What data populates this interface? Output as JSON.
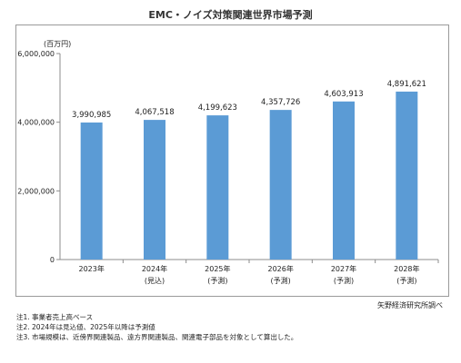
{
  "chart_data": {
    "type": "bar",
    "title": "EMC・ノイズ対策関連世界市場予測",
    "unit_label": "(百万円)",
    "categories": [
      "2023年",
      "2024年",
      "2025年",
      "2026年",
      "2027年",
      "2028年"
    ],
    "sublabels": [
      "",
      "(見込)",
      "(予測)",
      "(予測)",
      "(予測)",
      "(予測)"
    ],
    "values": [
      3990985,
      4067518,
      4199623,
      4357726,
      4603913,
      4891621
    ],
    "value_labels": [
      "3,990,985",
      "4,067,518",
      "4,199,623",
      "4,357,726",
      "4,603,913",
      "4,891,621"
    ],
    "y_ticks": [
      0,
      2000000,
      4000000,
      6000000
    ],
    "y_tick_labels": [
      "0",
      "2,000,000",
      "4,000,000",
      "6,000,000"
    ],
    "ylim": [
      0,
      6000000
    ],
    "bar_color": "#5b9bd5",
    "grid": false,
    "legend": "none"
  },
  "source": "矢野経済研究所調べ",
  "notes": [
    "注1. 事業者売上高ベース",
    "注2. 2024年は見込値、2025年以降は予測値",
    "注3. 市場規模は、近傍界関連製品、遠方界関連製品、関連電子部品を対象として算出した。"
  ]
}
